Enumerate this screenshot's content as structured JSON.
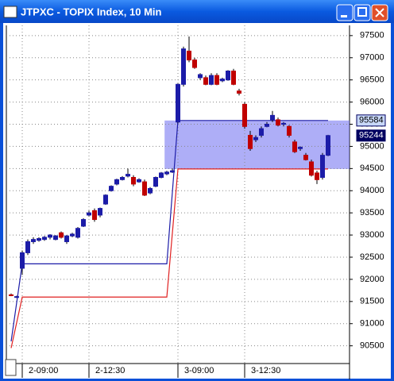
{
  "window": {
    "title": "JTPXC - TOPIX Index, 10 Min"
  },
  "chart_data": {
    "type": "candlestick",
    "categories": [
      null,
      null,
      "2-09:00",
      null,
      null,
      null,
      null,
      null,
      null,
      null,
      null,
      null,
      null,
      null,
      "2-12:30",
      null,
      null,
      null,
      null,
      null,
      null,
      null,
      null,
      null,
      null,
      null,
      null,
      null,
      null,
      null,
      "3-09:00",
      null,
      null,
      null,
      null,
      null,
      null,
      null,
      null,
      null,
      null,
      null,
      "3-12:30",
      null,
      null,
      null,
      null,
      null,
      null,
      null,
      null,
      null,
      null,
      null,
      null,
      null,
      null,
      null
    ],
    "open": [
      91650,
      91600,
      92250,
      92600,
      92850,
      92880,
      92900,
      92950,
      92900,
      93050,
      92850,
      92980,
      92950,
      93200,
      93450,
      93550,
      93450,
      93700,
      94000,
      94150,
      94250,
      94330,
      94300,
      94200,
      94200,
      93950,
      94100,
      94300,
      94380,
      94420,
      95550,
      96400,
      97150,
      96950,
      96550,
      96550,
      96400,
      96600,
      96480,
      96500,
      96700,
      96250,
      95950,
      95250,
      95150,
      95250,
      95450,
      95600,
      95600,
      95500,
      95450,
      95100,
      94950,
      94800,
      94650,
      94400,
      94300,
      94800
    ],
    "high": [
      91680,
      91630,
      92650,
      92900,
      92950,
      92950,
      92980,
      93020,
      93000,
      93080,
      93000,
      93050,
      93180,
      93380,
      93550,
      93600,
      93620,
      93920,
      94120,
      94270,
      94330,
      94500,
      94350,
      94280,
      94250,
      94080,
      94320,
      94420,
      94450,
      94500,
      96420,
      97250,
      97480,
      97000,
      96650,
      96600,
      96650,
      96650,
      96550,
      96720,
      96750,
      96300,
      96000,
      95350,
      95250,
      95450,
      95550,
      95800,
      95650,
      95550,
      95480,
      95150,
      95000,
      94850,
      94700,
      94450,
      94850,
      95260
    ],
    "low": [
      91620,
      91580,
      92100,
      92550,
      92800,
      92850,
      92870,
      92900,
      92880,
      92920,
      92800,
      92950,
      92920,
      93180,
      93420,
      93300,
      93400,
      93680,
      93980,
      94120,
      94230,
      94300,
      94100,
      94180,
      93880,
      93920,
      94080,
      94280,
      94350,
      94400,
      95520,
      96350,
      96900,
      96750,
      96500,
      96380,
      96380,
      96380,
      96450,
      96480,
      96380,
      96150,
      95400,
      94900,
      95100,
      95200,
      95430,
      95550,
      95450,
      95450,
      95200,
      94850,
      94900,
      94680,
      94320,
      94150,
      94250,
      94780
    ],
    "close": [
      91640,
      91610,
      92600,
      92850,
      92900,
      92920,
      92950,
      93000,
      92980,
      92950,
      92980,
      93020,
      93150,
      93350,
      93500,
      93350,
      93600,
      93900,
      94100,
      94250,
      94300,
      94370,
      94150,
      94250,
      93900,
      94050,
      94300,
      94400,
      94420,
      94450,
      96400,
      97200,
      96950,
      96780,
      96620,
      96400,
      96600,
      96400,
      96520,
      96700,
      96400,
      96200,
      95450,
      94950,
      95200,
      95400,
      95500,
      95700,
      95480,
      95520,
      95250,
      94880,
      94980,
      94700,
      94350,
      94250,
      94800,
      95244
    ],
    "up_color": "#1c1ca8",
    "down_color": "#c00000",
    "lines": [
      {
        "color": "#1c1ca8",
        "x": [
          0,
          2,
          28,
          30,
          57
        ],
        "values": [
          90600,
          92350,
          92350,
          95584,
          95584
        ]
      },
      {
        "color": "#e02020",
        "x": [
          0,
          2,
          28,
          30,
          57
        ],
        "values": [
          90450,
          91600,
          91600,
          94490,
          94490
        ]
      }
    ],
    "band": {
      "x": 27.6,
      "low": 94490,
      "high": 95584,
      "color": "#6c6cf0"
    },
    "price_labels": [
      95584,
      95244
    ],
    "ylim": [
      90100,
      97730
    ],
    "yticks": [
      90500,
      91000,
      91500,
      92000,
      92500,
      93000,
      93500,
      94000,
      94500,
      95000,
      95500,
      96000,
      96500,
      97000,
      97500
    ],
    "grid": true
  }
}
